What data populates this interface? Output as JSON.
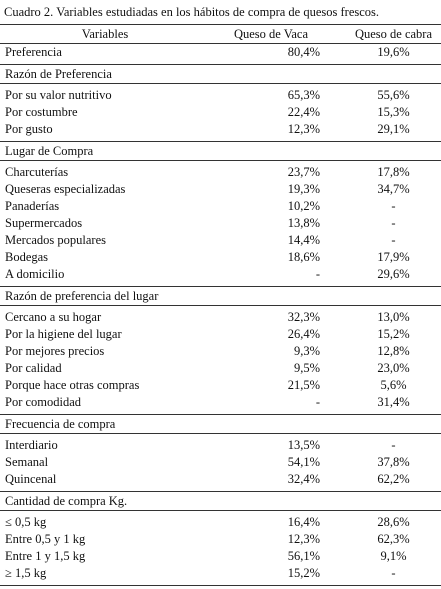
{
  "title": "Cuadro 2. Variables estudiadas en los hábitos de compra de quesos frescos.",
  "table": {
    "header": [
      "Variables",
      "Queso de Vaca",
      "Queso de cabra"
    ],
    "sections": [
      {
        "rows": [
          [
            "Preferencia",
            "80,4%",
            "19,6%"
          ]
        ]
      },
      {
        "heading": "Razón de Preferencia",
        "rows": [
          [
            "Por su valor nutritivo",
            "65,3%",
            "55,6%"
          ],
          [
            "Por costumbre",
            "22,4%",
            "15,3%"
          ],
          [
            "Por gusto",
            "12,3%",
            "29,1%"
          ]
        ]
      },
      {
        "heading": "Lugar de Compra",
        "rows": [
          [
            "Charcuterías",
            "23,7%",
            "17,8%"
          ],
          [
            "Queseras especializadas",
            "19,3%",
            "34,7%"
          ],
          [
            "Panaderías",
            "10,2%",
            "-"
          ],
          [
            "Supermercados",
            "13,8%",
            "-"
          ],
          [
            "Mercados populares",
            "14,4%",
            "-"
          ],
          [
            "Bodegas",
            "18,6%",
            "17,9%"
          ],
          [
            "A domicilio",
            "-",
            "29,6%"
          ]
        ]
      },
      {
        "heading": "Razón de preferencia del lugar",
        "rows": [
          [
            "Cercano a su hogar",
            "32,3%",
            "13,0%"
          ],
          [
            "Por la higiene del lugar",
            "26,4%",
            "15,2%"
          ],
          [
            "Por mejores precios",
            "9,3%",
            "12,8%"
          ],
          [
            "Por calidad",
            "9,5%",
            "23,0%"
          ],
          [
            "Porque hace otras compras",
            "21,5%",
            "5,6%"
          ],
          [
            "Por comodidad",
            "-",
            "31,4%"
          ]
        ]
      },
      {
        "heading": "Frecuencia de compra",
        "rows": [
          [
            "Interdiario",
            "13,5%",
            "-"
          ],
          [
            "Semanal",
            "54,1%",
            "37,8%"
          ],
          [
            "Quincenal",
            "32,4%",
            "62,2%"
          ]
        ]
      },
      {
        "heading": "Cantidad de compra Kg.",
        "rows": [
          [
            "≤ 0,5 kg",
            "16,4%",
            "28,6%"
          ],
          [
            "Entre 0,5 y 1 kg",
            "12,3%",
            "62,3%"
          ],
          [
            "Entre 1 y 1,5 kg",
            "56,1%",
            "9,1%"
          ],
          [
            "≥ 1,5 kg",
            "15,2%",
            "-"
          ]
        ]
      }
    ]
  }
}
